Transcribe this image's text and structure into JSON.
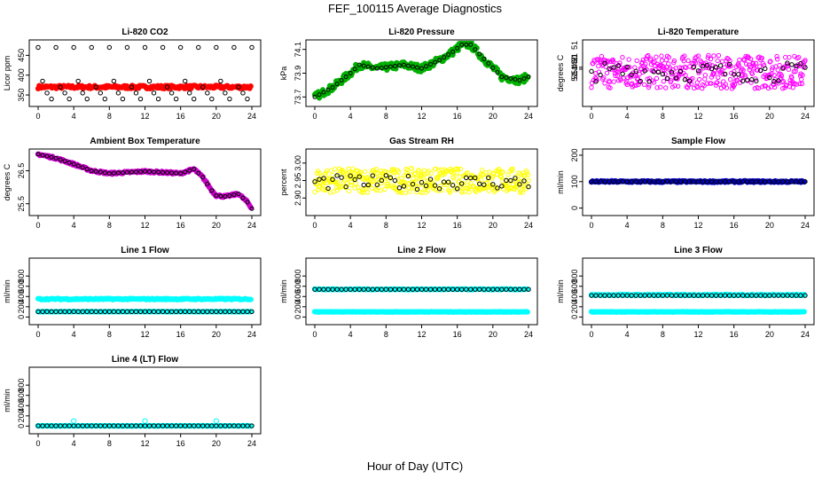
{
  "figure": {
    "title": "FEF_100115  Average Diagnostics",
    "xlabel": "Hour of Day (UTC)"
  },
  "chart_data": [
    {
      "id": "co2",
      "type": "scatter",
      "title": "Li-820 CO2",
      "ylabel": "Licor ppm",
      "xlim": [
        0,
        24
      ],
      "ylim": [
        330,
        480
      ],
      "yticks": [
        350,
        400,
        450
      ],
      "ytick_labels": [
        "350",
        "400",
        "450"
      ],
      "xticks": [
        0,
        4,
        8,
        12,
        16,
        20,
        24
      ],
      "series": [
        {
          "name": "raw",
          "color": "#ff0000",
          "kind": "band",
          "center": 370,
          "spread": 4
        },
        {
          "name": "hourly",
          "color": "#000000",
          "kind": "cycle",
          "values": [
            470,
            385,
            355,
            340,
            470,
            370,
            355,
            340
          ]
        }
      ]
    },
    {
      "id": "pressure",
      "type": "scatter",
      "title": "Li-820 Pressure",
      "ylabel": "kPa",
      "xlim": [
        0,
        24
      ],
      "ylim": [
        73.65,
        74.15
      ],
      "yticks": [
        73.7,
        73.9,
        74.1
      ],
      "ytick_labels": [
        "73.7",
        "73.9",
        "74.1"
      ],
      "xticks": [
        0,
        4,
        8,
        12,
        16,
        20,
        24
      ],
      "series": [
        {
          "name": "raw",
          "color": "#00b000",
          "kind": "curve",
          "spread": 0.03,
          "knots": [
            [
              0,
              73.7
            ],
            [
              2,
              73.78
            ],
            [
              4,
              73.9
            ],
            [
              5,
              73.97
            ],
            [
              7,
              73.94
            ],
            [
              10,
              73.97
            ],
            [
              12,
              73.94
            ],
            [
              14,
              74.01
            ],
            [
              15.5,
              74.08
            ],
            [
              16.5,
              74.14
            ],
            [
              17.5,
              74.14
            ],
            [
              19,
              74.02
            ],
            [
              21,
              73.87
            ],
            [
              23,
              73.84
            ],
            [
              24,
              73.87
            ]
          ]
        },
        {
          "name": "hourly",
          "color": "#000000",
          "kind": "curve_pts",
          "knots": [
            [
              0,
              73.7
            ],
            [
              2,
              73.78
            ],
            [
              4,
              73.9
            ],
            [
              5,
              73.97
            ],
            [
              7,
              73.94
            ],
            [
              10,
              73.97
            ],
            [
              12,
              73.94
            ],
            [
              14,
              74.01
            ],
            [
              15.5,
              74.08
            ],
            [
              16.5,
              74.14
            ],
            [
              17.5,
              74.14
            ],
            [
              19,
              74.02
            ],
            [
              21,
              73.87
            ],
            [
              23,
              73.84
            ],
            [
              24,
              73.87
            ]
          ]
        }
      ]
    },
    {
      "id": "licor_temp",
      "type": "scatter",
      "title": "Li-820 Temperature",
      "ylabel": "degrees C",
      "xlim": [
        0,
        24
      ],
      "ylim": [
        51.3,
        51.55
      ],
      "yticks": [
        51.442,
        51.45
      ],
      "ytick_labels": [
        "51.442",
        "51.450"
      ],
      "extra_ticks": [
        "51",
        "51",
        "51"
      ],
      "xticks": [
        0,
        4,
        8,
        12,
        16,
        20,
        24
      ],
      "series": [
        {
          "name": "raw",
          "color": "#ff00ff",
          "kind": "noise",
          "center": 51.43,
          "spread": 0.07
        },
        {
          "name": "hourly",
          "color": "#000000",
          "kind": "noise_pts",
          "center": 51.43,
          "spread": 0.04
        }
      ]
    },
    {
      "id": "box_temp",
      "type": "scatter",
      "title": "Ambient Box Temperature",
      "ylabel": "degrees C",
      "xlim": [
        0,
        24
      ],
      "ylim": [
        25.25,
        27.05
      ],
      "yticks": [
        25.5,
        26.5
      ],
      "ytick_labels": [
        "25.5",
        "26.5"
      ],
      "xticks": [
        0,
        4,
        8,
        12,
        16,
        20,
        24
      ],
      "series": [
        {
          "name": "raw",
          "color": "#cc00cc",
          "kind": "curve",
          "spread": 0.03,
          "knots": [
            [
              0,
              27
            ],
            [
              2,
              26.88
            ],
            [
              4,
              26.7
            ],
            [
              6,
              26.5
            ],
            [
              8,
              26.42
            ],
            [
              10,
              26.45
            ],
            [
              12,
              26.48
            ],
            [
              14,
              26.45
            ],
            [
              16,
              26.42
            ],
            [
              17.5,
              26.55
            ],
            [
              18.5,
              26.3
            ],
            [
              19.5,
              25.9
            ],
            [
              20,
              25.75
            ],
            [
              21,
              25.72
            ],
            [
              22.5,
              25.8
            ],
            [
              23.5,
              25.55
            ],
            [
              24,
              25.35
            ]
          ]
        },
        {
          "name": "hourly",
          "color": "#000000",
          "kind": "curve_pts",
          "knots": [
            [
              0,
              27
            ],
            [
              2,
              26.88
            ],
            [
              4,
              26.7
            ],
            [
              6,
              26.5
            ],
            [
              8,
              26.42
            ],
            [
              10,
              26.45
            ],
            [
              12,
              26.48
            ],
            [
              14,
              26.45
            ],
            [
              16,
              26.42
            ],
            [
              17.5,
              26.55
            ],
            [
              18.5,
              26.3
            ],
            [
              19.5,
              25.9
            ],
            [
              20,
              25.75
            ],
            [
              21,
              25.72
            ],
            [
              22.5,
              25.8
            ],
            [
              23.5,
              25.55
            ],
            [
              24,
              25.35
            ]
          ]
        }
      ]
    },
    {
      "id": "rh",
      "type": "scatter",
      "title": "Gas Stream RH",
      "ylabel": "percent",
      "xlim": [
        0,
        24
      ],
      "ylim": [
        2.86,
        3.03
      ],
      "yticks": [
        2.9,
        2.95,
        3.0
      ],
      "ytick_labels": [
        "2.90",
        "2.95",
        "3.00"
      ],
      "xticks": [
        0,
        4,
        8,
        12,
        16,
        20,
        24
      ],
      "series": [
        {
          "name": "raw",
          "color": "#ffff00",
          "kind": "noise",
          "center": 2.95,
          "spread": 0.035
        },
        {
          "name": "hourly",
          "color": "#000000",
          "kind": "noise_pts",
          "center": 2.945,
          "spread": 0.02
        }
      ]
    },
    {
      "id": "sample_flow",
      "type": "scatter",
      "title": "Sample Flow",
      "ylabel": "ml/min",
      "xlim": [
        0,
        24
      ],
      "ylim": [
        -15,
        210
      ],
      "yticks": [
        0,
        100,
        200
      ],
      "ytick_labels": [
        "0",
        "100",
        "200"
      ],
      "xticks": [
        0,
        4,
        8,
        12,
        16,
        20,
        24
      ],
      "series": [
        {
          "name": "raw",
          "color": "#0000cc",
          "kind": "band",
          "center": 100,
          "spread": 3
        },
        {
          "name": "hourly",
          "color": "#000000",
          "kind": "flat",
          "value": 100
        }
      ]
    },
    {
      "id": "line1",
      "type": "scatter",
      "title": "Line 1 Flow",
      "ylabel": "ml/min",
      "xlim": [
        0,
        24
      ],
      "ylim": [
        -80,
        1080
      ],
      "yticks": [
        0,
        200,
        400,
        600,
        800
      ],
      "ytick_labels": [
        "0",
        "200",
        "400",
        "600",
        "800"
      ],
      "xticks": [
        0,
        4,
        8,
        12,
        16,
        20,
        24
      ],
      "series": [
        {
          "name": "sample",
          "color": "#00ffff",
          "kind": "band",
          "center": 350,
          "spread": 12
        },
        {
          "name": "baseline",
          "color": "#00ffff",
          "kind": "band",
          "center": 105,
          "spread": 4
        },
        {
          "name": "hourly",
          "color": "#000000",
          "kind": "flat",
          "value": 105
        }
      ]
    },
    {
      "id": "line2",
      "type": "scatter",
      "title": "Line 2 Flow",
      "ylabel": "ml/min",
      "xlim": [
        0,
        24
      ],
      "ylim": [
        -80,
        1080
      ],
      "yticks": [
        0,
        200,
        400,
        600,
        800
      ],
      "ytick_labels": [
        "0",
        "200",
        "400",
        "600",
        "800"
      ],
      "xticks": [
        0,
        4,
        8,
        12,
        16,
        20,
        24
      ],
      "series": [
        {
          "name": "sample",
          "color": "#00ffff",
          "kind": "band",
          "center": 540,
          "spread": 8
        },
        {
          "name": "baseline",
          "color": "#00ffff",
          "kind": "band",
          "center": 100,
          "spread": 4
        },
        {
          "name": "hourly",
          "color": "#000000",
          "kind": "flat",
          "value": 540
        }
      ]
    },
    {
      "id": "line3",
      "type": "scatter",
      "title": "Line 3 Flow",
      "ylabel": "ml/min",
      "xlim": [
        0,
        24
      ],
      "ylim": [
        -80,
        1080
      ],
      "yticks": [
        0,
        200,
        400,
        600,
        800
      ],
      "ytick_labels": [
        "0",
        "200",
        "400",
        "600",
        "800"
      ],
      "xticks": [
        0,
        4,
        8,
        12,
        16,
        20,
        24
      ],
      "series": [
        {
          "name": "sample",
          "color": "#00ffff",
          "kind": "band",
          "center": 430,
          "spread": 10
        },
        {
          "name": "baseline",
          "color": "#00ffff",
          "kind": "band",
          "center": 100,
          "spread": 4
        },
        {
          "name": "hourly",
          "color": "#000000",
          "kind": "flat",
          "value": 420
        }
      ]
    },
    {
      "id": "line4",
      "type": "scatter",
      "title": "Line 4 (LT) Flow",
      "ylabel": "ml/min",
      "xlim": [
        0,
        24
      ],
      "ylim": [
        -80,
        1080
      ],
      "yticks": [
        0,
        200,
        400,
        600,
        800
      ],
      "ytick_labels": [
        "0",
        "200",
        "400",
        "600",
        "800"
      ],
      "xticks": [
        0,
        4,
        8,
        12,
        16,
        20,
        24
      ],
      "series": [
        {
          "name": "sample",
          "color": "#00ffff",
          "kind": "band",
          "center": 5,
          "spread": 3
        },
        {
          "name": "spikes",
          "color": "#00ffff",
          "kind": "spikes",
          "x": [
            4,
            12,
            20
          ],
          "value": 100
        },
        {
          "name": "hourly",
          "color": "#000000",
          "kind": "flat",
          "value": 5
        }
      ]
    }
  ]
}
